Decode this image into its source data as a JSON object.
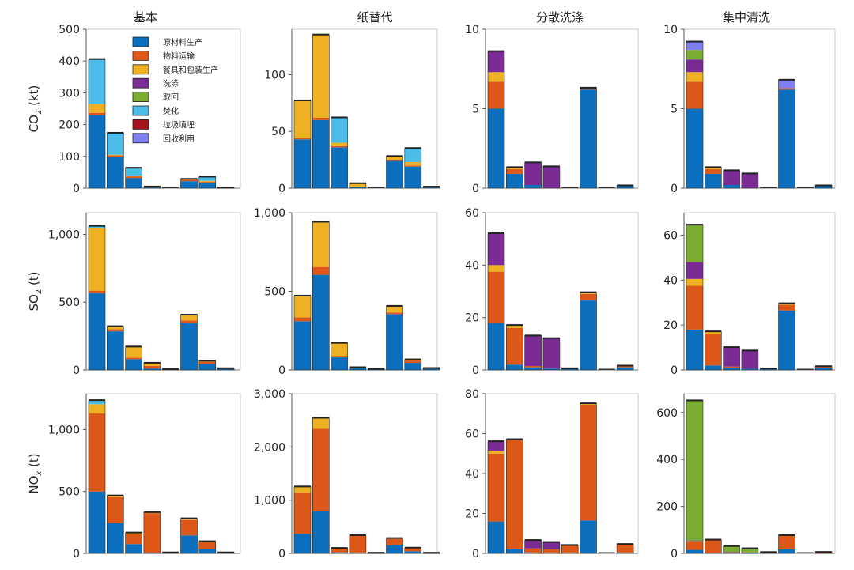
{
  "figure": {
    "column_titles": [
      "基本",
      "纸替代",
      "分散洗涤",
      "集中清洗"
    ],
    "row_ylabels": [
      {
        "base": "CO",
        "sub": "2",
        "unit": " (kt)"
      },
      {
        "base": "SO",
        "sub": "2",
        "unit": " (t)"
      },
      {
        "base": "NO",
        "sub": "x",
        "unit": " (t)"
      }
    ]
  },
  "legend": {
    "placement": "top-right inside first panel",
    "items": [
      {
        "label": "原材料生产",
        "color": "#0b6fbe"
      },
      {
        "label": "物料运输",
        "color": "#dc5718"
      },
      {
        "label": "餐具和包装生产",
        "color": "#eeb123"
      },
      {
        "label": "洗涤",
        "color": "#7b2b94"
      },
      {
        "label": "取回",
        "color": "#79ac30"
      },
      {
        "label": "焚化",
        "color": "#4cbce8"
      },
      {
        "label": "垃圾填埋",
        "color": "#a2151b"
      },
      {
        "label": "回收利用",
        "color": "#7d80ee"
      }
    ]
  },
  "chart_data": [
    {
      "type": "stacked-bar",
      "row": 0,
      "col": 0,
      "title": "基本",
      "ylabel": "CO2 (kt)",
      "ylim": [
        0,
        500
      ],
      "yticks": [
        0,
        100,
        200,
        300,
        400,
        500
      ],
      "ytick_labels": [
        "0",
        "100",
        "200",
        "300",
        "400",
        "500"
      ],
      "series_order": [
        "原材料生产",
        "物料运输",
        "餐具和包装生产",
        "洗涤",
        "取回",
        "焚化",
        "垃圾填埋",
        "回收利用"
      ],
      "bars": [
        [
          230,
          7,
          28,
          0,
          0,
          140,
          0,
          0
        ],
        [
          98,
          5,
          2,
          0,
          0,
          68,
          0,
          0
        ],
        [
          32,
          5,
          3,
          0,
          0,
          23,
          0,
          0
        ],
        [
          3,
          0,
          1,
          0,
          0,
          0,
          0,
          0
        ],
        [
          0,
          0,
          0,
          0,
          0,
          0,
          0,
          0
        ],
        [
          22,
          4,
          2,
          0,
          0,
          0,
          0,
          0
        ],
        [
          18,
          2,
          3,
          0,
          0,
          12,
          0,
          0
        ],
        [
          1,
          0,
          0,
          0,
          0,
          0,
          0,
          0
        ]
      ]
    },
    {
      "type": "stacked-bar",
      "row": 0,
      "col": 1,
      "title": "纸替代",
      "ylabel": "CO2 (kt)",
      "ylim": [
        0,
        140
      ],
      "yticks": [
        0,
        50,
        100
      ],
      "ytick_labels": [
        "0",
        "50",
        "100"
      ],
      "series_order": [
        "原材料生产",
        "物料运输",
        "餐具和包装生产",
        "洗涤",
        "取回",
        "焚化",
        "垃圾填埋",
        "回收利用"
      ],
      "bars": [
        [
          43,
          1,
          33,
          0,
          0,
          0,
          0,
          0
        ],
        [
          60,
          2,
          73,
          0,
          0,
          0,
          0,
          0
        ],
        [
          36,
          1,
          3,
          0,
          0,
          22,
          0,
          0
        ],
        [
          1,
          0,
          3,
          0,
          0,
          0,
          0,
          0
        ],
        [
          0,
          0,
          0,
          0,
          0,
          0,
          0,
          0
        ],
        [
          24,
          1,
          3,
          0,
          0,
          0,
          0,
          0
        ],
        [
          19,
          1,
          3,
          0,
          0,
          12,
          0,
          0
        ],
        [
          1,
          0,
          0,
          0,
          0,
          0,
          0,
          0
        ]
      ]
    },
    {
      "type": "stacked-bar",
      "row": 0,
      "col": 2,
      "title": "分散洗涤",
      "ylabel": "CO2 (kt)",
      "ylim": [
        0,
        10
      ],
      "yticks": [
        0,
        5,
        10
      ],
      "ytick_labels": [
        "0",
        "5",
        "10"
      ],
      "series_order": [
        "原材料生产",
        "物料运输",
        "餐具和包装生产",
        "洗涤",
        "取回",
        "焚化",
        "垃圾填埋",
        "回收利用"
      ],
      "bars": [
        [
          5.0,
          1.7,
          0.6,
          1.3,
          0,
          0,
          0,
          0
        ],
        [
          0.9,
          0.3,
          0.1,
          0,
          0,
          0,
          0,
          0
        ],
        [
          0.2,
          0,
          0,
          1.4,
          0,
          0,
          0,
          0
        ],
        [
          0,
          0,
          0,
          1.35,
          0,
          0,
          0,
          0
        ],
        [
          0,
          0,
          0,
          0,
          0,
          0,
          0,
          0
        ],
        [
          6.2,
          0.1,
          0,
          0,
          0,
          0,
          0,
          0
        ],
        [
          0,
          0,
          0,
          0,
          0,
          0,
          0,
          0
        ],
        [
          0.15,
          0,
          0,
          0,
          0,
          0,
          0,
          0
        ]
      ]
    },
    {
      "type": "stacked-bar",
      "row": 0,
      "col": 3,
      "title": "集中清洗",
      "ylabel": "CO2 (kt)",
      "ylim": [
        0,
        10
      ],
      "yticks": [
        0,
        5,
        10
      ],
      "ytick_labels": [
        "0",
        "5",
        "10"
      ],
      "series_order": [
        "原材料生产",
        "物料运输",
        "餐具和包装生产",
        "洗涤",
        "取回",
        "焚化",
        "垃圾填埋",
        "回收利用"
      ],
      "bars": [
        [
          5.0,
          1.7,
          0.6,
          0.8,
          0.6,
          0,
          0,
          0.5
        ],
        [
          0.9,
          0.3,
          0.1,
          0,
          0,
          0,
          0,
          0
        ],
        [
          0.2,
          0,
          0,
          0.9,
          0,
          0,
          0,
          0
        ],
        [
          0,
          0,
          0,
          0.9,
          0,
          0,
          0,
          0
        ],
        [
          0,
          0,
          0,
          0,
          0,
          0,
          0,
          0
        ],
        [
          6.2,
          0.1,
          0,
          0,
          0,
          0,
          0,
          0.5
        ],
        [
          0,
          0,
          0,
          0,
          0,
          0,
          0,
          0
        ],
        [
          0.15,
          0,
          0,
          0,
          0,
          0,
          0,
          0
        ]
      ]
    },
    {
      "type": "stacked-bar",
      "row": 1,
      "col": 0,
      "title": "基本",
      "ylabel": "SO2 (t)",
      "ylim": [
        0,
        1160
      ],
      "yticks": [
        0,
        500,
        1000
      ],
      "ytick_labels": [
        "0",
        "500",
        "1,000"
      ],
      "series_order": [
        "原材料生产",
        "物料运输",
        "餐具和包装生产",
        "洗涤",
        "取回",
        "焚化",
        "垃圾填埋",
        "回收利用"
      ],
      "bars": [
        [
          565,
          20,
          460,
          0,
          0,
          15,
          0,
          0
        ],
        [
          285,
          15,
          20,
          0,
          0,
          0,
          0,
          0
        ],
        [
          80,
          10,
          80,
          0,
          0,
          0,
          0,
          0
        ],
        [
          10,
          20,
          20,
          0,
          0,
          0,
          0,
          0
        ],
        [
          5,
          0,
          0,
          0,
          0,
          0,
          0,
          0
        ],
        [
          345,
          20,
          40,
          0,
          0,
          0,
          0,
          0
        ],
        [
          45,
          15,
          5,
          0,
          0,
          0,
          0,
          0
        ],
        [
          10,
          0,
          0,
          0,
          0,
          0,
          0,
          0
        ]
      ]
    },
    {
      "type": "stacked-bar",
      "row": 1,
      "col": 1,
      "title": "纸替代",
      "ylabel": "SO2 (t)",
      "ylim": [
        0,
        1000
      ],
      "yticks": [
        0,
        500,
        1000
      ],
      "ytick_labels": [
        "0",
        "500",
        "1,000"
      ],
      "series_order": [
        "原材料生产",
        "物料运输",
        "餐具和包装生产",
        "洗涤",
        "取回",
        "焚化",
        "垃圾填埋",
        "回收利用"
      ],
      "bars": [
        [
          310,
          25,
          135,
          0,
          0,
          0,
          0,
          0
        ],
        [
          605,
          50,
          285,
          0,
          0,
          0,
          0,
          0
        ],
        [
          80,
          10,
          80,
          0,
          0,
          0,
          0,
          0
        ],
        [
          10,
          0,
          5,
          0,
          0,
          0,
          0,
          0
        ],
        [
          5,
          0,
          0,
          0,
          0,
          0,
          0,
          0
        ],
        [
          355,
          10,
          40,
          0,
          0,
          0,
          0,
          0
        ],
        [
          45,
          15,
          5,
          0,
          0,
          0,
          0,
          0
        ],
        [
          10,
          0,
          0,
          0,
          0,
          0,
          0,
          0
        ]
      ]
    },
    {
      "type": "stacked-bar",
      "row": 1,
      "col": 2,
      "title": "分散洗涤",
      "ylabel": "SO2 (t)",
      "ylim": [
        0,
        60
      ],
      "yticks": [
        0,
        20,
        40,
        60
      ],
      "ytick_labels": [
        "0",
        "20",
        "40",
        "60"
      ],
      "series_order": [
        "原材料生产",
        "物料运输",
        "餐具和包装生产",
        "洗涤",
        "取回",
        "焚化",
        "垃圾填埋",
        "回收利用"
      ],
      "bars": [
        [
          18,
          19.5,
          2.5,
          12,
          0,
          0,
          0,
          0
        ],
        [
          2,
          14,
          1,
          0,
          0,
          0,
          0,
          0
        ],
        [
          1,
          0.5,
          0,
          11.5,
          0,
          0,
          0,
          0
        ],
        [
          0.5,
          0,
          0,
          11.5,
          0,
          0,
          0,
          0
        ],
        [
          0.5,
          0,
          0,
          0,
          0,
          0,
          0,
          0
        ],
        [
          26.5,
          2.5,
          0.5,
          0,
          0,
          0,
          0,
          0
        ],
        [
          0,
          0,
          0,
          0,
          0,
          0,
          0,
          0
        ],
        [
          1,
          0.5,
          0,
          0,
          0,
          0,
          0,
          0
        ]
      ]
    },
    {
      "type": "stacked-bar",
      "row": 1,
      "col": 3,
      "title": "集中清洗",
      "ylabel": "SO2 (t)",
      "ylim": [
        0,
        70
      ],
      "yticks": [
        0,
        20,
        40,
        60
      ],
      "ytick_labels": [
        "0",
        "20",
        "40",
        "60"
      ],
      "series_order": [
        "原材料生产",
        "物料运输",
        "餐具和包装生产",
        "洗涤",
        "取回",
        "焚化",
        "垃圾填埋",
        "回收利用"
      ],
      "bars": [
        [
          18,
          19.5,
          3,
          7.5,
          16.5,
          0,
          0,
          0
        ],
        [
          2,
          14,
          1,
          0,
          0,
          0,
          0,
          0
        ],
        [
          1,
          0.5,
          0,
          8.5,
          0,
          0,
          0,
          0
        ],
        [
          0.5,
          0,
          0,
          8,
          0,
          0,
          0,
          0
        ],
        [
          0.5,
          0,
          0,
          0,
          0,
          0,
          0,
          0
        ],
        [
          26.5,
          2.5,
          0.5,
          0,
          0,
          0,
          0,
          0
        ],
        [
          0,
          0,
          0,
          0,
          0,
          0,
          0,
          0
        ],
        [
          1,
          0.5,
          0,
          0,
          0,
          0,
          0,
          0
        ]
      ]
    },
    {
      "type": "stacked-bar",
      "row": 2,
      "col": 0,
      "title": "基本",
      "ylabel": "NOx (t)",
      "ylim": [
        0,
        1290
      ],
      "yticks": [
        0,
        500,
        1000
      ],
      "ytick_labels": [
        "0",
        "500",
        "1,000"
      ],
      "series_order": [
        "原材料生产",
        "物料运输",
        "餐具和包装生产",
        "洗涤",
        "取回",
        "焚化",
        "垃圾填埋",
        "回收利用"
      ],
      "bars": [
        [
          500,
          630,
          75,
          0,
          0,
          30,
          0,
          0
        ],
        [
          245,
          210,
          10,
          0,
          0,
          0,
          0,
          0
        ],
        [
          75,
          80,
          10,
          0,
          0,
          0,
          0,
          0
        ],
        [
          5,
          320,
          5,
          0,
          0,
          0,
          0,
          0
        ],
        [
          5,
          0,
          0,
          0,
          0,
          0,
          0,
          0
        ],
        [
          145,
          125,
          10,
          0,
          0,
          0,
          0,
          0
        ],
        [
          35,
          55,
          5,
          0,
          0,
          0,
          0,
          0
        ],
        [
          5,
          0,
          0,
          0,
          0,
          0,
          0,
          0
        ]
      ]
    },
    {
      "type": "stacked-bar",
      "row": 2,
      "col": 1,
      "title": "纸替代",
      "ylabel": "NOx (t)",
      "ylim": [
        0,
        3000
      ],
      "yticks": [
        0,
        1000,
        2000,
        3000
      ],
      "ytick_labels": [
        "0",
        "1,000",
        "2,000",
        "3,000"
      ],
      "series_order": [
        "原材料生产",
        "物料运输",
        "餐具和包装生产",
        "洗涤",
        "取回",
        "焚化",
        "垃圾填埋",
        "回收利用"
      ],
      "bars": [
        [
          370,
          770,
          110,
          0,
          0,
          0,
          0,
          0
        ],
        [
          790,
          1550,
          200,
          0,
          0,
          0,
          0,
          0
        ],
        [
          20,
          70,
          5,
          0,
          0,
          0,
          0,
          0
        ],
        [
          20,
          310,
          5,
          0,
          0,
          0,
          0,
          0
        ],
        [
          5,
          0,
          0,
          0,
          0,
          0,
          0,
          0
        ],
        [
          150,
          120,
          10,
          0,
          0,
          0,
          0,
          0
        ],
        [
          40,
          55,
          5,
          0,
          0,
          0,
          0,
          0
        ],
        [
          5,
          0,
          0,
          0,
          0,
          0,
          0,
          0
        ]
      ]
    },
    {
      "type": "stacked-bar",
      "row": 2,
      "col": 2,
      "title": "分散洗涤",
      "ylabel": "NOx (t)",
      "ylim": [
        0,
        80
      ],
      "yticks": [
        0,
        20,
        40,
        60,
        80
      ],
      "ytick_labels": [
        "0",
        "20",
        "40",
        "60",
        "80"
      ],
      "series_order": [
        "原材料生产",
        "物料运输",
        "餐具和包装生产",
        "洗涤",
        "取回",
        "焚化",
        "垃圾填埋",
        "回收利用"
      ],
      "bars": [
        [
          16,
          34,
          1.5,
          4.5,
          0,
          0,
          0,
          0
        ],
        [
          2,
          55,
          0,
          0,
          0,
          0,
          0,
          0
        ],
        [
          0.5,
          2,
          0,
          4,
          0,
          0,
          0,
          0
        ],
        [
          0.5,
          1.5,
          0,
          3.5,
          0,
          0,
          0,
          0
        ],
        [
          0.5,
          3.5,
          0,
          0,
          0,
          0,
          0,
          0
        ],
        [
          16.5,
          58,
          0.5,
          0,
          0,
          0,
          0,
          0
        ],
        [
          0,
          0,
          0,
          0,
          0,
          0,
          0,
          0
        ],
        [
          0.5,
          4,
          0,
          0,
          0,
          0,
          0,
          0
        ]
      ]
    },
    {
      "type": "stacked-bar",
      "row": 2,
      "col": 3,
      "title": "集中清洗",
      "ylabel": "NOx (t)",
      "ylim": [
        0,
        680
      ],
      "yticks": [
        0,
        200,
        400,
        600
      ],
      "ytick_labels": [
        "0",
        "200",
        "400",
        "600"
      ],
      "series_order": [
        "原材料生产",
        "物料运输",
        "餐具和包装生产",
        "洗涤",
        "取回",
        "焚化",
        "垃圾填埋",
        "回收利用"
      ],
      "bars": [
        [
          15,
          35,
          2,
          3,
          595,
          0,
          0,
          0
        ],
        [
          2,
          55,
          0,
          0,
          0,
          0,
          0,
          0
        ],
        [
          0.5,
          2,
          0,
          3,
          24,
          0,
          0,
          0
        ],
        [
          0.5,
          1.5,
          0,
          2,
          16,
          0,
          0,
          0
        ],
        [
          0.5,
          3.5,
          0,
          0,
          0,
          0,
          0,
          0
        ],
        [
          17,
          58,
          1,
          0,
          0,
          0,
          0,
          0
        ],
        [
          0,
          0,
          0,
          0,
          0,
          0,
          0,
          0
        ],
        [
          0.5,
          4,
          0,
          0,
          0,
          0,
          0,
          0
        ]
      ]
    }
  ]
}
